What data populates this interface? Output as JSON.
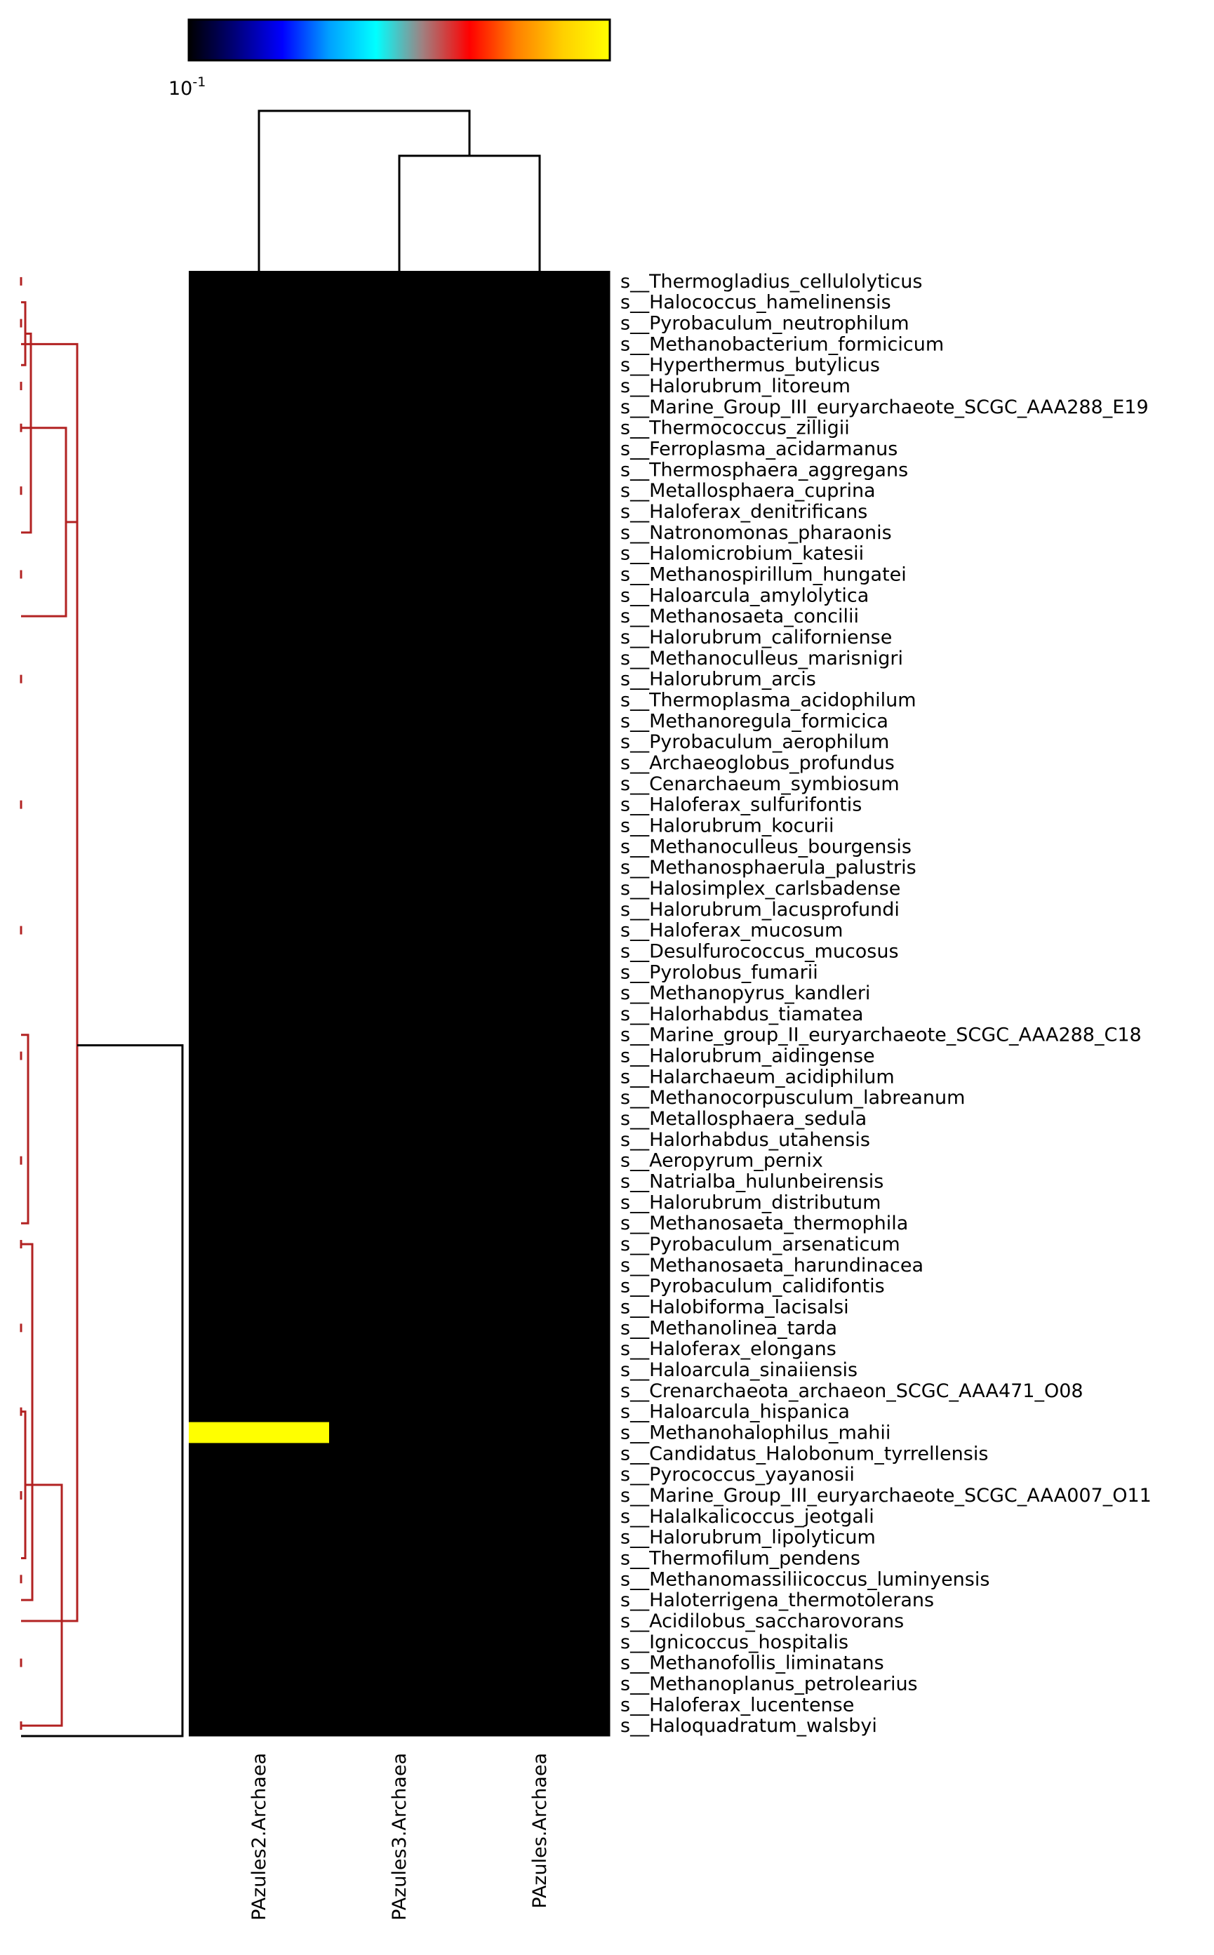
{
  "chart_data": {
    "type": "heatmap",
    "columns": [
      "PAzules2.Archaea",
      "PAzules3.Archaea",
      "PAzules.Archaea"
    ],
    "rows": [
      "s__Thermogladius_cellulolyticus",
      "s__Halococcus_hamelinensis",
      "s__Pyrobaculum_neutrophilum",
      "s__Methanobacterium_formicicum",
      "s__Hyperthermus_butylicus",
      "s__Halorubrum_litoreum",
      "s__Marine_Group_III_euryarchaeote_SCGC_AAA288_E19",
      "s__Thermococcus_zilligii",
      "s__Ferroplasma_acidarmanus",
      "s__Thermosphaera_aggregans",
      "s__Metallosphaera_cuprina",
      "s__Haloferax_denitrificans",
      "s__Natronomonas_pharaonis",
      "s__Halomicrobium_katesii",
      "s__Methanospirillum_hungatei",
      "s__Haloarcula_amylolytica",
      "s__Methanosaeta_concilii",
      "s__Halorubrum_californiense",
      "s__Methanoculleus_marisnigri",
      "s__Halorubrum_arcis",
      "s__Thermoplasma_acidophilum",
      "s__Methanoregula_formicica",
      "s__Pyrobaculum_aerophilum",
      "s__Archaeoglobus_profundus",
      "s__Cenarchaeum_symbiosum",
      "s__Haloferax_sulfurifontis",
      "s__Halorubrum_kocurii",
      "s__Methanoculleus_bourgensis",
      "s__Methanosphaerula_palustris",
      "s__Halosimplex_carlsbadense",
      "s__Halorubrum_lacusprofundi",
      "s__Haloferax_mucosum",
      "s__Desulfurococcus_mucosus",
      "s__Pyrolobus_fumarii",
      "s__Methanopyrus_kandleri",
      "s__Halorhabdus_tiamatea",
      "s__Marine_group_II_euryarchaeote_SCGC_AAA288_C18",
      "s__Halorubrum_aidingense",
      "s__Halarchaeum_acidiphilum",
      "s__Methanocorpusculum_labreanum",
      "s__Metallosphaera_sedula",
      "s__Halorhabdus_utahensis",
      "s__Aeropyrum_pernix",
      "s__Natrialba_hulunbeirensis",
      "s__Halorubrum_distributum",
      "s__Methanosaeta_thermophila",
      "s__Pyrobaculum_arsenaticum",
      "s__Methanosaeta_harundinacea",
      "s__Pyrobaculum_calidifontis",
      "s__Halobiforma_lacisalsi",
      "s__Methanolinea_tarda",
      "s__Haloferax_elongans",
      "s__Haloarcula_sinaiiensis",
      "s__Crenarchaeota_archaeon_SCGC_AAA471_O08",
      "s__Haloarcula_hispanica",
      "s__Methanohalophilus_mahii",
      "s__Candidatus_Halobonum_tyrrellensis",
      "s__Pyrococcus_yayanosii",
      "s__Marine_Group_III_euryarchaeote_SCGC_AAA007_O11",
      "s__Halalkalicoccus_jeotgali",
      "s__Halorubrum_lipolyticum",
      "s__Thermofilum_pendens",
      "s__Methanomassiliicoccus_luminyensis",
      "s__Haloterrigena_thermotolerans",
      "s__Acidilobus_saccharovorans",
      "s__Ignicoccus_hospitalis",
      "s__Methanofollis_liminatans",
      "s__Methanoplanus_petrolearius",
      "s__Haloferax_lucentense",
      "s__Haloquadratum_walsbyi"
    ],
    "highlighted_cells": [
      {
        "row": "s__Methanohalophilus_mahii",
        "column": "PAzules2.Archaea",
        "level": "max"
      }
    ],
    "background_level": "min",
    "colorbar": {
      "tick_label_base": "10",
      "tick_label_exp": "-1",
      "colors": [
        "#000000",
        "#00007a",
        "#0000ff",
        "#00a0ff",
        "#00ffff",
        "#a08080",
        "#ff0000",
        "#ff8000",
        "#ffd000",
        "#ffff00"
      ]
    },
    "row_dendrogram_color": "#b22222",
    "col_dendrogram_color": "#000000",
    "cell_colors": {
      "min": "#000000",
      "max": "#ffff00"
    }
  }
}
